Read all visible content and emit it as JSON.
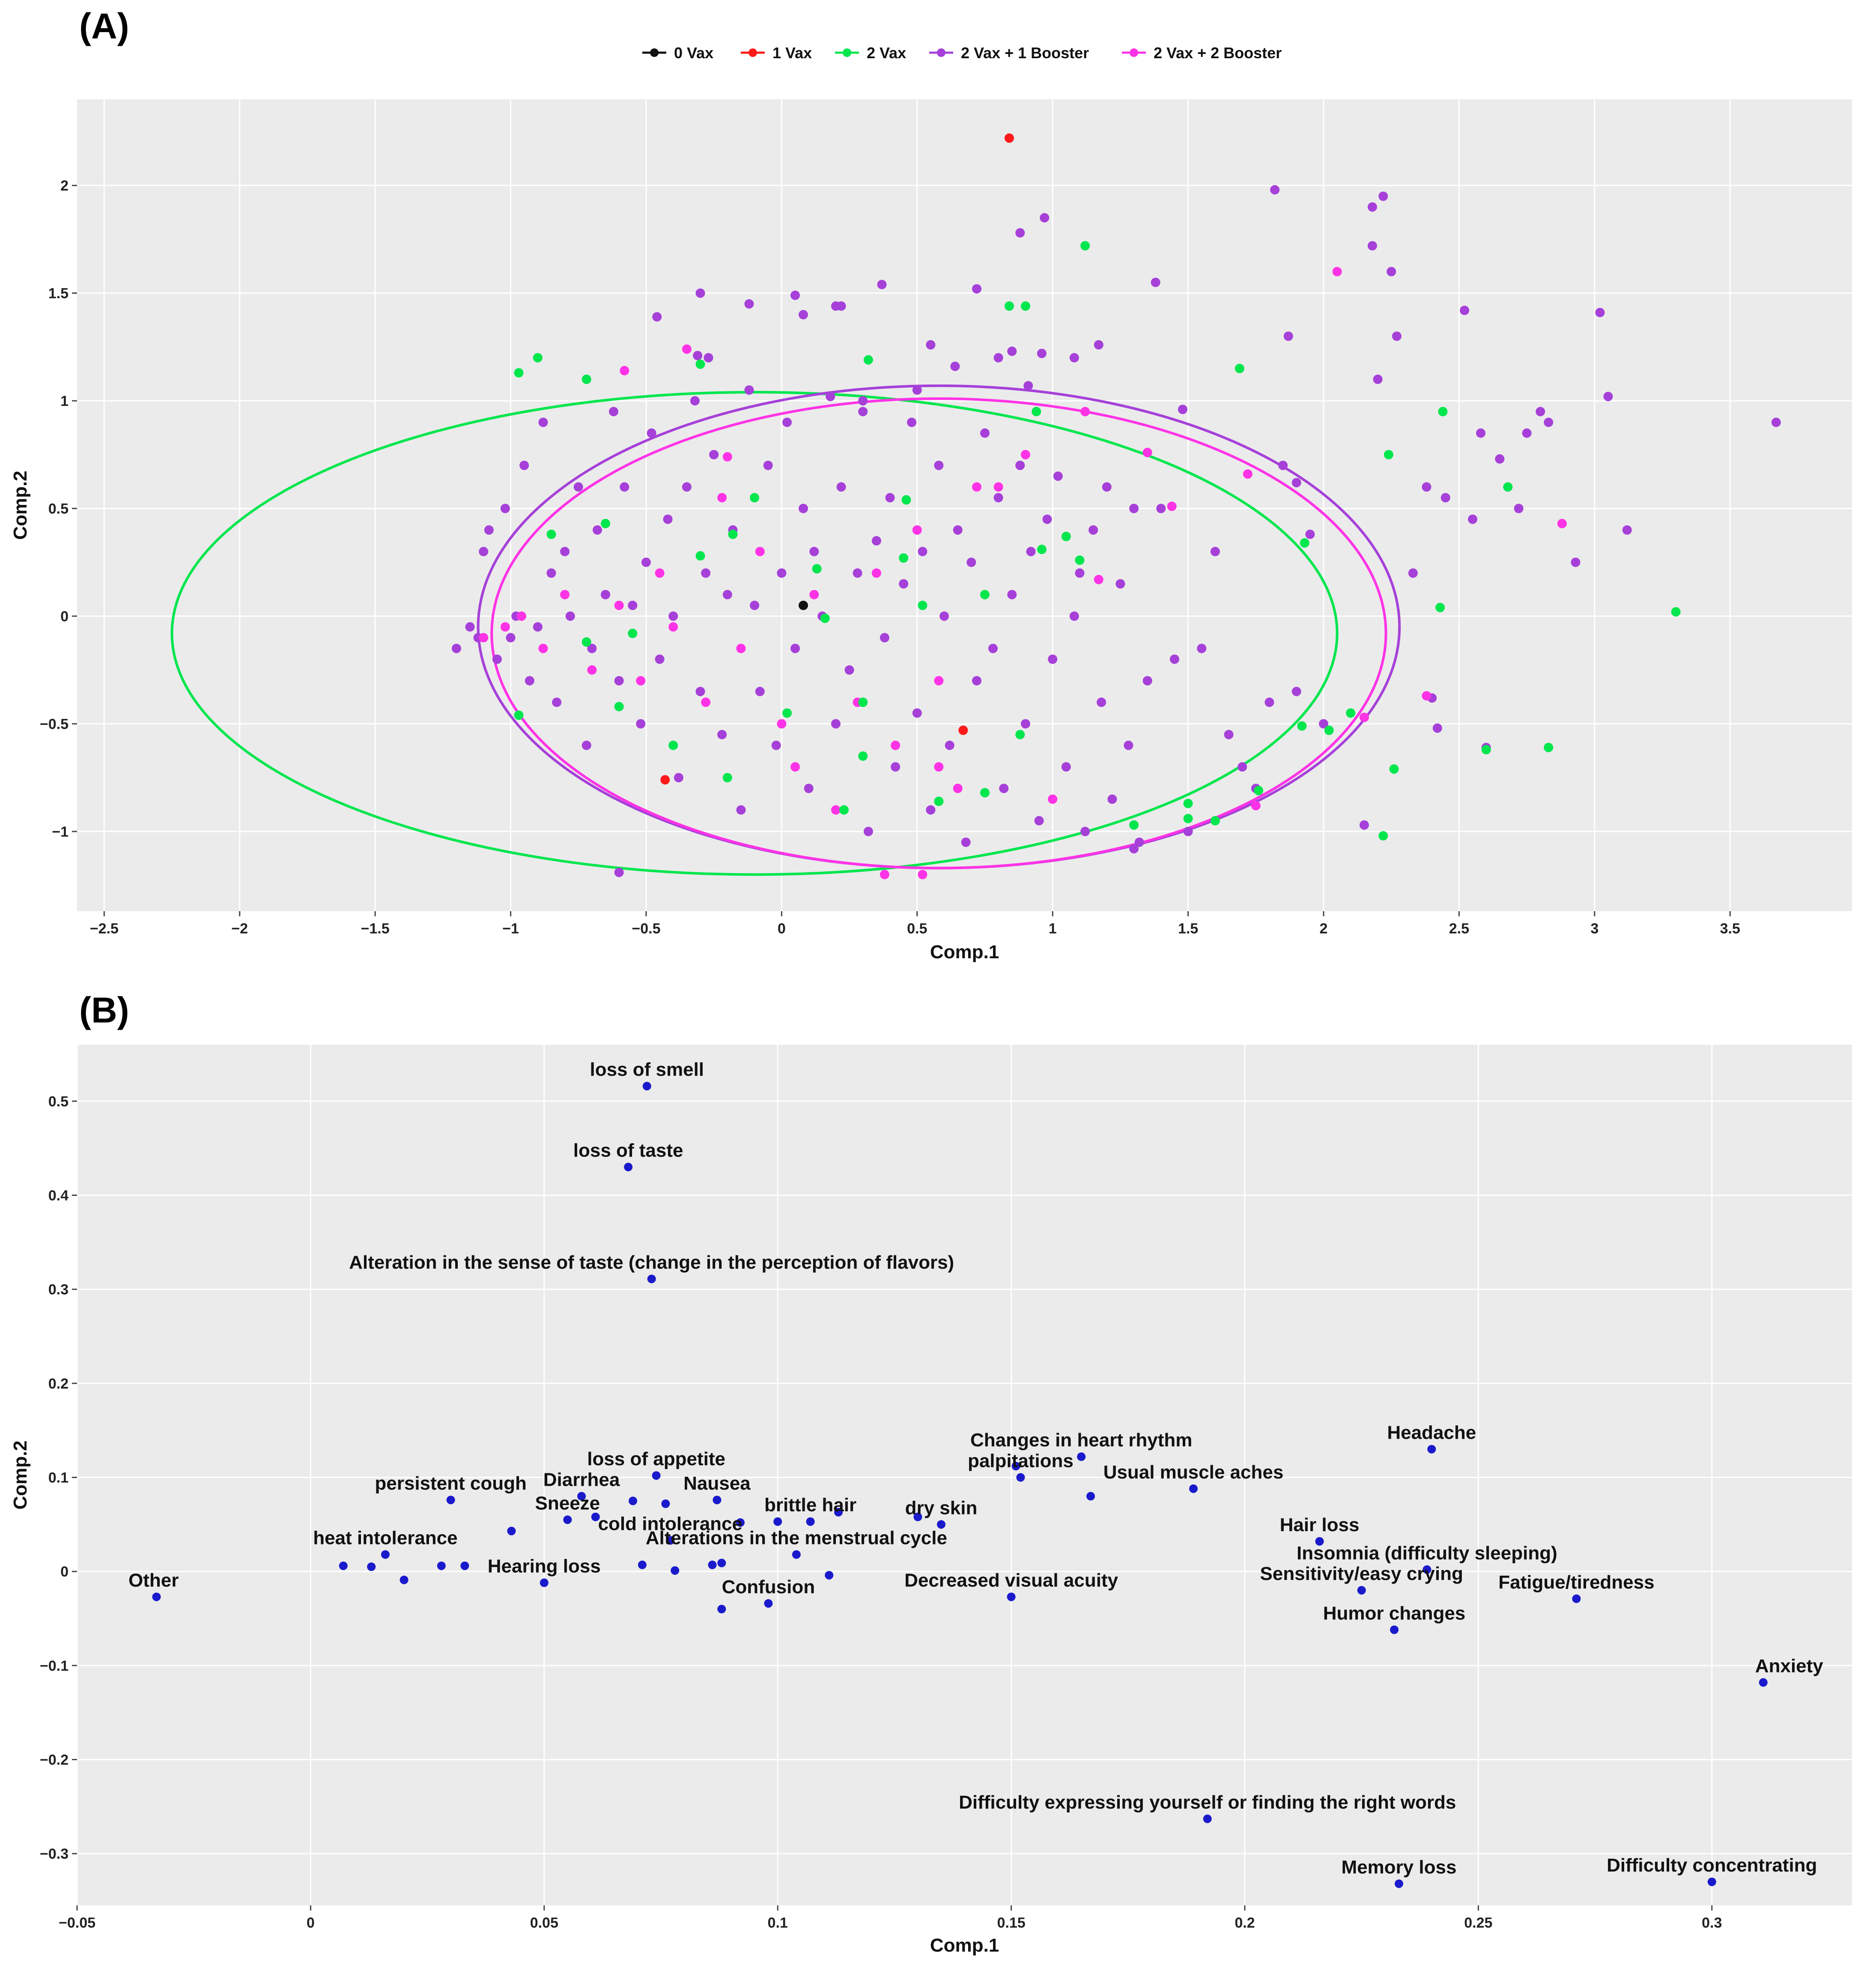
{
  "chart_data": [
    {
      "panel": "(A)",
      "type": "scatter",
      "xlabel": "Comp.1",
      "ylabel": "Comp.2",
      "xlim": [
        -2.6,
        3.95
      ],
      "ylim": [
        -1.37,
        2.4
      ],
      "x_ticks": [
        -2.5,
        -2,
        -1.5,
        -1,
        -0.5,
        0,
        0.5,
        1,
        1.5,
        2,
        2.5,
        3,
        3.5
      ],
      "y_ticks": [
        -1,
        -0.5,
        0,
        0.5,
        1,
        1.5,
        2
      ],
      "legend": [
        {
          "label": "0 Vax",
          "color": "#111111"
        },
        {
          "label": "1 Vax",
          "color": "#ff1a1a"
        },
        {
          "label": "2 Vax",
          "color": "#00e64d"
        },
        {
          "label": "2 Vax + 1 Booster",
          "color": "#a640d9"
        },
        {
          "label": "2 Vax + 2 Booster",
          "color": "#ff33e6"
        }
      ],
      "ellipses": [
        {
          "series": "2 Vax",
          "color": "#00e64d",
          "cx": -0.1,
          "cy": -0.08,
          "rx": 2.15,
          "ry": 1.12
        },
        {
          "series": "2 Vax + 1 Booster",
          "color": "#a640d9",
          "cx": 0.58,
          "cy": -0.05,
          "rx": 1.7,
          "ry": 1.12
        },
        {
          "series": "2 Vax + 2 Booster",
          "color": "#ff33e6",
          "cx": 0.58,
          "cy": -0.08,
          "rx": 1.65,
          "ry": 1.09
        }
      ],
      "series": [
        {
          "name": "0 Vax",
          "color": "#111111",
          "x": [
            0.08
          ],
          "y": [
            0.05
          ]
        },
        {
          "name": "1 Vax",
          "color": "#ff1a1a",
          "x": [
            0.84,
            0.67,
            -0.43
          ],
          "y": [
            2.22,
            -0.53,
            -0.76
          ]
        },
        {
          "name": "2 Vax",
          "color": "#00e64d",
          "x": [
            -0.97,
            -0.9,
            -0.72,
            -0.3,
            0.32,
            1.12,
            0.84,
            0.9,
            1.69,
            0.94,
            2.24,
            2.44,
            2.68,
            0.52,
            0.75,
            -0.18,
            0.02,
            1.93,
            3.3,
            2.43,
            2.6,
            2.83,
            2.22,
            2.26,
            -0.97,
            -0.6,
            0.23,
            0.58,
            0.75,
            0.3,
            0.45,
            0.13,
            0.3,
            -0.4,
            -0.55,
            -0.72,
            1.5,
            1.6,
            1.76,
            1.5,
            1.3,
            1.92,
            2.02,
            2.1,
            -0.3,
            -0.85,
            -0.65,
            -0.1,
            0.46,
            0.16,
            -0.2,
            0.88,
            0.96,
            1.05,
            1.1
          ],
          "y": [
            1.13,
            1.2,
            1.1,
            1.17,
            1.19,
            1.72,
            1.44,
            1.44,
            1.15,
            0.95,
            0.75,
            0.95,
            0.6,
            0.05,
            0.1,
            0.38,
            -0.45,
            0.34,
            0.02,
            0.04,
            -0.62,
            -0.61,
            -1.02,
            -0.71,
            -0.46,
            -0.42,
            -0.9,
            -0.86,
            -0.82,
            -0.65,
            0.27,
            0.22,
            -0.4,
            -0.6,
            -0.08,
            -0.12,
            -0.87,
            -0.95,
            -0.81,
            -0.94,
            -0.97,
            -0.51,
            -0.53,
            -0.45,
            0.28,
            0.38,
            0.43,
            0.55,
            0.54,
            -0.01,
            -0.75,
            -0.55,
            0.31,
            0.37,
            0.26
          ]
        },
        {
          "name": "2 Vax + 1 Booster",
          "color": "#a640d9",
          "x": [
            -1.2,
            -1.15,
            -1.12,
            -1.1,
            -1.08,
            -1.05,
            -1.02,
            -1.0,
            -0.98,
            -0.95,
            -0.93,
            -0.9,
            -0.88,
            -0.85,
            -0.83,
            -0.8,
            -0.78,
            -0.75,
            -0.72,
            -0.7,
            -0.68,
            -0.65,
            -0.62,
            -0.6,
            -0.58,
            -0.55,
            -0.52,
            -0.5,
            -0.48,
            -0.45,
            -0.42,
            -0.4,
            -0.38,
            -0.35,
            -0.32,
            -0.3,
            -0.28,
            -0.25,
            -0.22,
            -0.2,
            -0.18,
            -0.15,
            -0.12,
            -0.1,
            -0.08,
            -0.05,
            -0.02,
            0.0,
            0.02,
            0.05,
            0.08,
            0.1,
            0.12,
            0.15,
            0.18,
            0.2,
            0.22,
            0.25,
            0.28,
            0.3,
            0.32,
            0.35,
            0.38,
            0.4,
            0.42,
            0.45,
            0.48,
            0.5,
            0.52,
            0.55,
            0.58,
            0.6,
            0.62,
            0.65,
            0.68,
            0.7,
            0.72,
            0.75,
            0.78,
            0.8,
            0.82,
            0.85,
            0.88,
            0.9,
            0.92,
            0.95,
            0.98,
            1.0,
            1.02,
            1.05,
            1.08,
            1.1,
            1.12,
            1.15,
            1.18,
            1.2,
            1.22,
            1.25,
            1.28,
            1.3,
            1.32,
            1.35,
            1.4,
            1.45,
            1.5,
            1.55,
            1.6,
            1.65,
            1.7,
            1.75,
            1.8,
            1.85,
            1.9,
            1.95,
            2.0,
            2.15,
            2.18,
            2.22,
            2.27,
            2.33,
            2.4,
            2.45,
            2.52,
            2.58,
            2.65,
            2.72,
            2.75,
            2.8,
            2.83,
            2.93,
            3.02,
            3.05,
            3.12,
            3.67,
            1.82,
            2.18,
            2.25,
            0.97,
            0.88,
            0.8,
            1.08,
            1.38,
            0.55,
            -0.3,
            -0.27,
            0.08,
            0.2,
            -0.6,
            1.3,
            2.6,
            2.42,
            2.2,
            2.38,
            2.55,
            1.87,
            1.9,
            0.85,
            0.96,
            0.3,
            0.5,
            0.72,
            -0.46,
            -0.31,
            -0.12,
            0.05,
            0.22,
            0.37,
            0.64,
            0.91,
            1.17,
            1.48
          ],
          "y": [
            -0.15,
            -0.05,
            -0.1,
            0.3,
            0.4,
            -0.2,
            0.5,
            -0.1,
            0.0,
            0.7,
            -0.3,
            -0.05,
            0.9,
            0.2,
            -0.4,
            0.3,
            0.0,
            0.6,
            -0.6,
            -0.15,
            0.4,
            0.1,
            0.95,
            -0.3,
            0.6,
            0.05,
            -0.5,
            0.25,
            0.85,
            -0.2,
            0.45,
            0.0,
            -0.75,
            0.6,
            1.0,
            -0.35,
            0.2,
            0.75,
            -0.55,
            0.1,
            0.4,
            -0.9,
            1.05,
            0.05,
            -0.35,
            0.7,
            -0.6,
            0.2,
            0.9,
            -0.15,
            0.5,
            -0.8,
            0.3,
            0.0,
            1.02,
            -0.5,
            0.6,
            -0.25,
            0.2,
            0.95,
            -1.0,
            0.35,
            -0.1,
            0.55,
            -0.7,
            0.15,
            0.9,
            -0.45,
            0.3,
            -0.9,
            0.7,
            0.0,
            -0.6,
            0.4,
            -1.05,
            0.25,
            -0.3,
            0.85,
            -0.15,
            0.55,
            -0.8,
            0.1,
            0.7,
            -0.5,
            0.3,
            -0.95,
            0.45,
            -0.2,
            0.65,
            -0.7,
            0.0,
            0.2,
            -1.0,
            0.4,
            -0.4,
            0.6,
            -0.85,
            0.15,
            -0.6,
            0.5,
            -1.05,
            -0.3,
            0.5,
            -0.2,
            -1.0,
            -0.15,
            0.3,
            -0.55,
            -0.7,
            -0.8,
            -0.4,
            0.7,
            -0.35,
            0.38,
            -0.5,
            -0.97,
            1.9,
            1.95,
            1.3,
            0.2,
            -0.38,
            0.55,
            1.42,
            0.85,
            0.73,
            0.5,
            0.85,
            0.95,
            0.9,
            0.25,
            1.41,
            1.02,
            0.4,
            0.9,
            1.98,
            1.72,
            1.6,
            1.85,
            1.78,
            1.2,
            1.2,
            1.55,
            1.26,
            1.5,
            1.2,
            1.4,
            1.44,
            -1.19,
            -1.08,
            -0.61,
            -0.52,
            1.1,
            0.6,
            0.45,
            1.3,
            0.62,
            1.23,
            1.22,
            1.0,
            1.05,
            1.52,
            1.39,
            1.21,
            1.45,
            1.49,
            1.44,
            1.54,
            1.16,
            1.07,
            1.26,
            0.96
          ]
        },
        {
          "name": "2 Vax + 2 Booster",
          "color": "#ff33e6",
          "x": [
            -1.1,
            -1.02,
            -0.96,
            -0.88,
            -0.8,
            -0.7,
            -0.6,
            -0.52,
            -0.45,
            -0.4,
            -0.35,
            -0.28,
            -0.22,
            -0.15,
            -0.08,
            0.0,
            0.05,
            0.12,
            0.2,
            0.28,
            0.35,
            0.42,
            0.5,
            0.58,
            0.65,
            0.72,
            0.8,
            0.9,
            1.0,
            1.12,
            1.17,
            1.35,
            1.44,
            1.72,
            1.75,
            2.05,
            2.15,
            2.38,
            2.88,
            0.52,
            0.58,
            -0.58,
            -0.2,
            0.38
          ],
          "y": [
            -0.1,
            -0.05,
            0.0,
            -0.15,
            0.1,
            -0.25,
            0.05,
            -0.3,
            0.2,
            -0.05,
            1.24,
            -0.4,
            0.55,
            -0.15,
            0.3,
            -0.5,
            -0.7,
            0.1,
            -0.9,
            -0.4,
            0.2,
            -0.6,
            0.4,
            -0.3,
            -0.8,
            0.6,
            0.6,
            0.75,
            -0.85,
            0.95,
            0.17,
            0.76,
            0.51,
            0.66,
            -0.88,
            1.6,
            -0.47,
            -0.37,
            0.43,
            -1.2,
            -0.7,
            1.14,
            0.74,
            -1.2
          ]
        }
      ]
    },
    {
      "panel": "(B)",
      "type": "scatter",
      "xlabel": "Comp.1",
      "ylabel": "Comp.2",
      "xlim": [
        -0.05,
        0.33
      ],
      "ylim": [
        -0.355,
        0.56
      ],
      "x_ticks": [
        -0.05,
        0,
        0.05,
        0.1,
        0.15,
        0.2,
        0.25,
        0.3
      ],
      "y_ticks": [
        -0.3,
        -0.2,
        -0.1,
        0,
        0.1,
        0.2,
        0.3,
        0.4,
        0.5
      ],
      "point_color": "#1a1acc",
      "points": [
        {
          "label": "loss of smell",
          "x": 0.072,
          "y": 0.516
        },
        {
          "label": "loss of taste",
          "x": 0.068,
          "y": 0.43
        },
        {
          "label": "Alteration in the sense of taste (change in the perception of flavors)",
          "x": 0.073,
          "y": 0.311
        },
        {
          "label": "Changes in heart rhythm",
          "x": 0.165,
          "y": 0.122
        },
        {
          "label": "Headache",
          "x": 0.24,
          "y": 0.13
        },
        {
          "label": "palpitations",
          "x": 0.152,
          "y": 0.1
        },
        {
          "label": "loss of appetite",
          "x": 0.074,
          "y": 0.102
        },
        {
          "label": "Usual muscle aches",
          "x": 0.189,
          "y": 0.088
        },
        {
          "label": "persistent cough",
          "x": 0.03,
          "y": 0.076
        },
        {
          "label": "Diarrhea",
          "x": 0.058,
          "y": 0.08
        },
        {
          "label": "Nausea",
          "x": 0.087,
          "y": 0.076
        },
        {
          "label": "Sneeze",
          "x": 0.055,
          "y": 0.055
        },
        {
          "label": "brittle hair",
          "x": 0.107,
          "y": 0.053
        },
        {
          "label": "dry skin",
          "x": 0.135,
          "y": 0.05
        },
        {
          "label": "Hair loss",
          "x": 0.216,
          "y": 0.032
        },
        {
          "label": "cold intolerance",
          "x": 0.077,
          "y": 0.033
        },
        {
          "label": "heat intolerance",
          "x": 0.016,
          "y": 0.018
        },
        {
          "label": "Alterations in the menstrual cycle",
          "x": 0.104,
          "y": 0.018
        },
        {
          "label": "Insomnia (difficulty sleeping)",
          "x": 0.239,
          "y": 0.002
        },
        {
          "label": "Hearing loss",
          "x": 0.05,
          "y": -0.012
        },
        {
          "label": "Sensitivity/easy crying",
          "x": 0.225,
          "y": -0.02
        },
        {
          "label": "Other",
          "x": -0.033,
          "y": -0.027
        },
        {
          "label": "Confusion",
          "x": 0.098,
          "y": -0.034
        },
        {
          "label": "Decreased visual acuity",
          "x": 0.15,
          "y": -0.027
        },
        {
          "label": "Fatigue/tiredness",
          "x": 0.271,
          "y": -0.029
        },
        {
          "label": "Humor changes",
          "x": 0.232,
          "y": -0.062
        },
        {
          "label": "Anxiety",
          "x": 0.311,
          "y": -0.118
        },
        {
          "label": "Difficulty expressing yourself or finding the right words",
          "x": 0.192,
          "y": -0.263
        },
        {
          "label": "Memory loss",
          "x": 0.233,
          "y": -0.332
        },
        {
          "label": "Difficulty concentrating",
          "x": 0.3,
          "y": -0.33
        }
      ],
      "unlabeled_points": {
        "x": [
          0.007,
          0.013,
          0.02,
          0.028,
          0.033,
          0.043,
          0.061,
          0.069,
          0.071,
          0.076,
          0.078,
          0.086,
          0.088,
          0.088,
          0.092,
          0.1,
          0.111,
          0.113,
          0.13,
          0.167,
          0.151
        ],
        "y": [
          0.006,
          0.005,
          -0.009,
          0.006,
          0.006,
          0.043,
          0.058,
          0.075,
          0.007,
          0.072,
          0.001,
          0.007,
          0.009,
          -0.04,
          0.052,
          0.053,
          -0.004,
          0.063,
          0.058,
          0.08,
          0.112
        ]
      }
    }
  ]
}
